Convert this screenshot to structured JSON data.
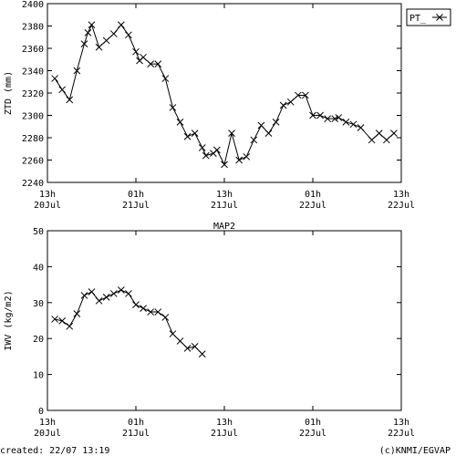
{
  "chart_data": [
    {
      "type": "line",
      "ylabel": "ZTD (mm)",
      "x": [
        1,
        2,
        3,
        4,
        5,
        5.5,
        6,
        7,
        8,
        9,
        10,
        11,
        12,
        12.5,
        13,
        14,
        15,
        16,
        17,
        18,
        19,
        20,
        21,
        21.5,
        22.5,
        23,
        24,
        25,
        26,
        27,
        28,
        29,
        30,
        31,
        32,
        33,
        34,
        35,
        36,
        37,
        38,
        39,
        39.5,
        40.5,
        41.5,
        42.5,
        44,
        45,
        46,
        47
      ],
      "series": [
        {
          "name": "PT_",
          "color": "#000000",
          "values": [
            2333,
            2323,
            2314,
            2340,
            2364,
            2374,
            2381,
            2361,
            2367,
            2373,
            2381,
            2372,
            2357,
            2349,
            2352,
            2346,
            2346,
            2333,
            2307,
            2294,
            2281,
            2284,
            2271,
            2264,
            2266,
            2269,
            2256,
            2284,
            2260,
            2263,
            2278,
            2291,
            2284,
            2294,
            2309,
            2312,
            2318,
            2318,
            2300,
            2300,
            2297,
            2297,
            2298,
            2294,
            2292,
            2289,
            2278,
            2284,
            2278,
            2284
          ]
        }
      ],
      "xlim": [
        0,
        48
      ],
      "xticks": [
        {
          "value": 0,
          "label": "13h\n20Jul"
        },
        {
          "value": 12,
          "label": "01h\n21Jul"
        },
        {
          "value": 24,
          "label": "13h\n21Jul"
        },
        {
          "value": 36,
          "label": "01h\n22Jul"
        },
        {
          "value": 48,
          "label": "13h\n22Jul"
        }
      ],
      "ylim": [
        2240,
        2400
      ],
      "yticks": [
        2240,
        2260,
        2280,
        2300,
        2320,
        2340,
        2360,
        2380,
        2400
      ]
    },
    {
      "type": "line",
      "title": "MAP2",
      "ylabel": "IWV (kg/m2)",
      "x": [
        1,
        2,
        3,
        4,
        5,
        6,
        7,
        8,
        9,
        10,
        11,
        12,
        13,
        14,
        15,
        16,
        17,
        18,
        19,
        20,
        21
      ],
      "series": [
        {
          "color": "#000000",
          "values": [
            25.4,
            24.9,
            23.4,
            26.9,
            32,
            33,
            30.5,
            31.5,
            32.5,
            33.5,
            32.5,
            29.4,
            28.4,
            27.4,
            27.4,
            25.9,
            21.3,
            19.3,
            17.3,
            17.8,
            15.7
          ]
        }
      ],
      "xlim": [
        0,
        48
      ],
      "xticks": [
        {
          "value": 0,
          "label": "13h\n20Jul"
        },
        {
          "value": 12,
          "label": "01h\n21Jul"
        },
        {
          "value": 24,
          "label": "13h\n21Jul"
        },
        {
          "value": 36,
          "label": "01h\n22Jul"
        },
        {
          "value": 48,
          "label": "13h\n22Jul"
        }
      ],
      "ylim": [
        0,
        50
      ],
      "yticks": [
        0,
        10,
        20,
        30,
        40,
        50
      ]
    }
  ],
  "footer": {
    "left": "created: 22/07 13:19",
    "right": "(c)KNMI/EGVAP"
  }
}
